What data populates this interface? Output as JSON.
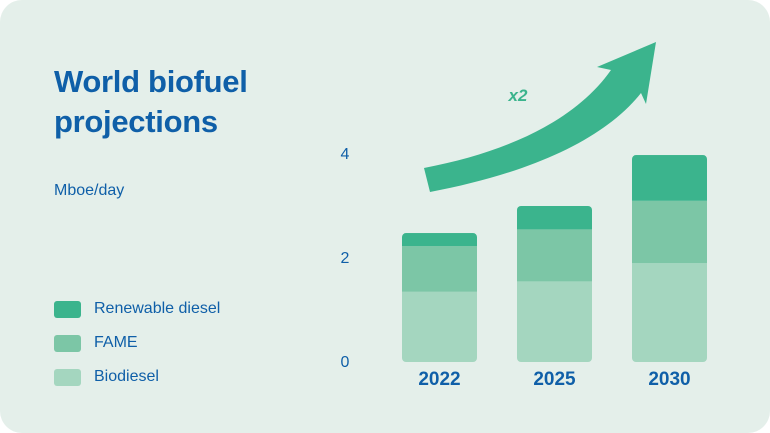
{
  "colors": {
    "background": "#e4efea",
    "text": "#0f5fa8",
    "arrow": "#3bb48d",
    "renewable_diesel": "#3bb48d",
    "fame": "#7cc6a6",
    "biodiesel": "#a4d6bf"
  },
  "chart_data": {
    "type": "bar",
    "stacked": true,
    "title": "World biofuel projections",
    "ylabel": "Mboe/day",
    "xlabel": "",
    "categories": [
      "2022",
      "2025",
      "2030"
    ],
    "yticks": [
      "0",
      "2",
      "4"
    ],
    "ylim": [
      0,
      4
    ],
    "grid": false,
    "legend_position": "left",
    "series": [
      {
        "key": "biodiesel",
        "name": "Biodiesel",
        "values": [
          1.35,
          1.55,
          1.9
        ]
      },
      {
        "key": "fame",
        "name": "FAME",
        "values": [
          0.88,
          1.0,
          1.2
        ]
      },
      {
        "key": "renewable_diesel",
        "name": "Renewable diesel",
        "values": [
          0.25,
          0.45,
          0.88
        ]
      }
    ],
    "legend": [
      "Renewable diesel",
      "FAME",
      "Biodiesel"
    ],
    "annotation": "x2"
  }
}
